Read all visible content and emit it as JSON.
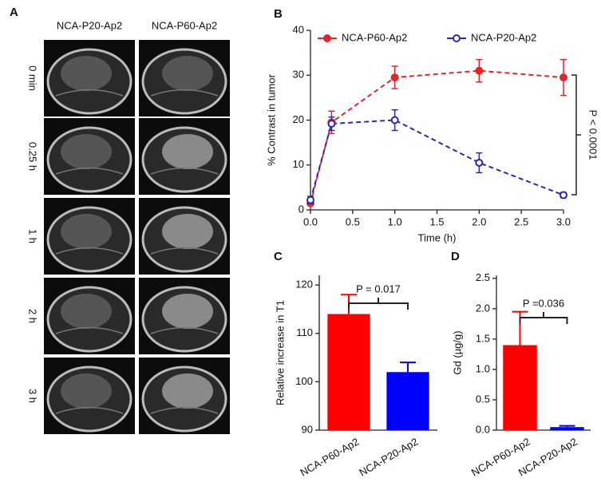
{
  "panel_a": {
    "label": "A",
    "columns": [
      "NCA-P20-Ap2",
      "NCA-P60-Ap2"
    ],
    "rows": [
      "0 min",
      "0.25 h",
      "1 h",
      "2 h",
      "3 h"
    ]
  },
  "chart_data": [
    {
      "type": "line",
      "panel_label": "B",
      "xlabel": "Time (h)",
      "ylabel": "% Contrast in tumor",
      "x": [
        0,
        0.25,
        1,
        2,
        3
      ],
      "xlim": [
        0,
        3
      ],
      "xticks": [
        {
          "value": 0,
          "label": "0.0"
        },
        {
          "value": 0.5,
          "label": "0.5"
        },
        {
          "value": 1,
          "label": "1.0"
        },
        {
          "value": 1.5,
          "label": "1.5"
        },
        {
          "value": 2,
          "label": "2.0"
        },
        {
          "value": 2.5,
          "label": "2.5"
        },
        {
          "value": 3,
          "label": "3.0"
        }
      ],
      "ylim": [
        0,
        40
      ],
      "yticks": [
        0,
        10,
        20,
        30,
        40
      ],
      "legend": "top",
      "series": [
        {
          "name": "NCA-P60-Ap2",
          "color": "#e0262a",
          "marker": "filled",
          "values": [
            1.5,
            19.5,
            29.5,
            31,
            29.5
          ],
          "errors": [
            0.5,
            2.5,
            2.5,
            2.5,
            4
          ]
        },
        {
          "name": "NCA-P20-Ap2",
          "color": "#2a2ab0",
          "marker": "open",
          "values": [
            2.2,
            19.2,
            20,
            10.5,
            3.3
          ],
          "errors": [
            0.8,
            1.5,
            2.3,
            2.2,
            0.6
          ]
        }
      ],
      "annotation": "P < 0.0001"
    },
    {
      "type": "bar",
      "panel_label": "C",
      "ylabel": "Relative increase in T1",
      "categories": [
        "NCA-P60-Ap2",
        "NCA-P20-Ap2"
      ],
      "values": [
        114,
        102
      ],
      "errors": [
        4,
        2
      ],
      "colors": [
        "#ff0000",
        "#0000ff"
      ],
      "ylim": [
        90,
        122
      ],
      "yticks": [
        90,
        100,
        110,
        120
      ],
      "annotation": "P = 0.017"
    },
    {
      "type": "bar",
      "panel_label": "D",
      "ylabel": "Gd (µg/g)",
      "categories": [
        "NCA-P60-Ap2",
        "NCA-P20-Ap2"
      ],
      "values": [
        1.4,
        0.05
      ],
      "errors": [
        0.55,
        0.02
      ],
      "colors": [
        "#ff0000",
        "#0000ff"
      ],
      "ylim": [
        0,
        2.55
      ],
      "yticks": [
        {
          "value": 0,
          "label": "0.0"
        },
        {
          "value": 0.5,
          "label": "0.5"
        },
        {
          "value": 1,
          "label": "1.0"
        },
        {
          "value": 1.5,
          "label": "1.5"
        },
        {
          "value": 2,
          "label": "2.0"
        },
        {
          "value": 2.5,
          "label": "2.5"
        }
      ],
      "annotation": "P =0.036"
    }
  ]
}
